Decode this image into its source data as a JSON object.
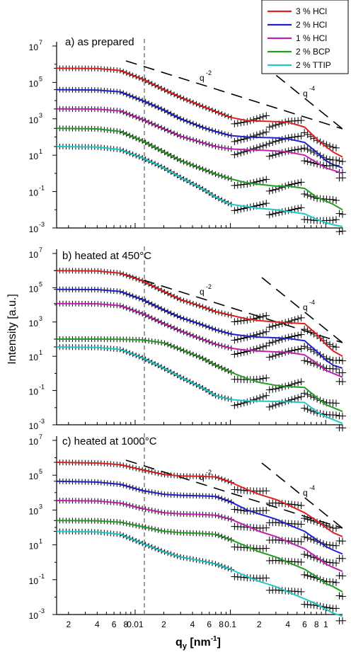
{
  "chart_data": [
    {
      "type": "line",
      "title": "a) as prepared",
      "xscale": "log",
      "yscale": "log",
      "xlim": [
        0.0015,
        1.5
      ],
      "ylim": [
        0.001,
        10000000
      ],
      "vline_x": 0.0125,
      "slope_labels": [
        "q",
        "-2",
        "q",
        "-4"
      ],
      "series": [
        {
          "name": "3 % HCl",
          "color": "#e02020",
          "x": [
            0.0015,
            0.004,
            0.007,
            0.012,
            0.02,
            0.03,
            0.05,
            0.07,
            0.1,
            0.15,
            0.2,
            0.3,
            0.4,
            0.6,
            0.8,
            1.0,
            1.2,
            1.5
          ],
          "y": [
            600000,
            580000,
            450000,
            150000,
            40000,
            15000,
            5000,
            2500,
            1200,
            800,
            750,
            700,
            650,
            350,
            80,
            30,
            15,
            8
          ]
        },
        {
          "name": "2 % HCl",
          "color": "#2020cc",
          "x": [
            0.0015,
            0.004,
            0.007,
            0.012,
            0.02,
            0.03,
            0.05,
            0.07,
            0.1,
            0.15,
            0.2,
            0.3,
            0.4,
            0.6,
            0.8,
            1.0,
            1.2,
            1.5
          ],
          "y": [
            40000,
            38000,
            30000,
            10000,
            3000,
            1000,
            350,
            200,
            120,
            100,
            95,
            90,
            80,
            50,
            15,
            5,
            3,
            2
          ]
        },
        {
          "name": "1 % HCl",
          "color": "#c020b0",
          "x": [
            0.0015,
            0.004,
            0.007,
            0.012,
            0.02,
            0.03,
            0.05,
            0.07,
            0.1,
            0.15,
            0.2,
            0.3,
            0.4,
            0.6,
            0.8,
            1.0,
            1.2,
            1.5
          ],
          "y": [
            3500,
            3400,
            2700,
            900,
            280,
            110,
            50,
            30,
            22,
            20,
            19,
            17,
            15,
            10,
            4,
            2,
            1.5,
            1
          ]
        },
        {
          "name": "2 % BCP",
          "color": "#20a020",
          "x": [
            0.0015,
            0.004,
            0.007,
            0.012,
            0.02,
            0.03,
            0.05,
            0.07,
            0.1,
            0.15,
            0.2,
            0.3,
            0.4,
            0.6,
            0.8,
            1.0,
            1.2,
            1.5
          ],
          "y": [
            300,
            280,
            200,
            60,
            15,
            5,
            1.8,
            0.9,
            0.5,
            0.3,
            0.25,
            0.2,
            0.2,
            0.15,
            0.05,
            0.03,
            0.02,
            0.01
          ]
        },
        {
          "name": "2 % TTIP",
          "color": "#20c8c8",
          "x": [
            0.0015,
            0.004,
            0.007,
            0.012,
            0.02,
            0.03,
            0.05,
            0.07,
            0.1,
            0.15,
            0.2,
            0.3,
            0.4,
            0.6,
            0.8,
            1.0,
            1.2,
            1.5
          ],
          "y": [
            30,
            28,
            20,
            7,
            2,
            0.6,
            0.15,
            0.05,
            0.02,
            0.015,
            0.012,
            0.01,
            0.008,
            0.006,
            0.003,
            0.002,
            0.0015,
            0.0012
          ]
        }
      ]
    },
    {
      "type": "line",
      "title": "b) heated at 450°C",
      "xscale": "log",
      "yscale": "log",
      "xlim": [
        0.0015,
        1.5
      ],
      "ylim": [
        0.001,
        10000000
      ],
      "vline_x": 0.0125,
      "slope_labels": [
        "q",
        "-2",
        "q",
        "-4"
      ],
      "series": [
        {
          "name": "3 % HCl",
          "color": "#e02020",
          "x": [
            0.0015,
            0.004,
            0.007,
            0.012,
            0.02,
            0.03,
            0.05,
            0.07,
            0.1,
            0.15,
            0.2,
            0.3,
            0.4,
            0.6,
            0.8,
            1.0,
            1.2,
            1.5
          ],
          "y": [
            1000000,
            950000,
            700000,
            250000,
            60000,
            20000,
            8000,
            4000,
            2500,
            1500,
            1200,
            1000,
            900,
            800,
            200,
            50,
            20,
            10
          ]
        },
        {
          "name": "2 % HCl",
          "color": "#2020cc",
          "x": [
            0.0015,
            0.004,
            0.007,
            0.012,
            0.02,
            0.03,
            0.05,
            0.07,
            0.1,
            0.15,
            0.2,
            0.3,
            0.4,
            0.6,
            0.8,
            1.0,
            1.2,
            1.5
          ],
          "y": [
            80000,
            78000,
            60000,
            20000,
            5000,
            1800,
            700,
            350,
            200,
            150,
            130,
            120,
            110,
            80,
            20,
            6,
            3,
            2
          ]
        },
        {
          "name": "1 % HCl",
          "color": "#c020b0",
          "x": [
            0.0015,
            0.004,
            0.007,
            0.012,
            0.02,
            0.03,
            0.05,
            0.07,
            0.1,
            0.15,
            0.2,
            0.3,
            0.4,
            0.6,
            0.8,
            1.0,
            1.2,
            1.5
          ],
          "y": [
            12000,
            11500,
            9000,
            3000,
            800,
            300,
            100,
            50,
            30,
            22,
            20,
            18,
            17,
            12,
            4,
            1.5,
            1,
            0.6
          ]
        },
        {
          "name": "2 % BCP",
          "color": "#20a020",
          "x": [
            0.0015,
            0.004,
            0.007,
            0.012,
            0.02,
            0.03,
            0.05,
            0.07,
            0.1,
            0.15,
            0.2,
            0.3,
            0.4,
            0.6,
            0.8,
            1.0,
            1.2,
            1.5
          ],
          "y": [
            100,
            100,
            98,
            90,
            60,
            25,
            8,
            3,
            1.2,
            0.5,
            0.3,
            0.2,
            0.17,
            0.15,
            0.04,
            0.015,
            0.01,
            0.006
          ]
        },
        {
          "name": "2 % TTIP",
          "color": "#20c8c8",
          "x": [
            0.0015,
            0.004,
            0.007,
            0.012,
            0.02,
            0.03,
            0.05,
            0.07,
            0.1,
            0.15,
            0.2,
            0.3,
            0.4,
            0.6,
            0.8,
            1.0,
            1.2,
            1.5
          ],
          "y": [
            35,
            33,
            25,
            8,
            2,
            0.6,
            0.15,
            0.05,
            0.03,
            0.025,
            0.024,
            0.023,
            0.022,
            0.02,
            0.006,
            0.003,
            0.002,
            0.0012
          ]
        }
      ]
    },
    {
      "type": "line",
      "title": "c) heated at 1000°C",
      "xscale": "log",
      "yscale": "log",
      "xlim": [
        0.0015,
        1.5
      ],
      "ylim": [
        0.001,
        10000000
      ],
      "vline_x": 0.0125,
      "slope_labels": [
        "q",
        "-2",
        "q",
        "-4"
      ],
      "series": [
        {
          "name": "3 % HCl",
          "color": "#e02020",
          "x": [
            0.0015,
            0.004,
            0.007,
            0.012,
            0.02,
            0.03,
            0.05,
            0.07,
            0.1,
            0.15,
            0.2,
            0.3,
            0.4,
            0.6,
            0.8,
            1.0,
            1.2,
            1.5
          ],
          "y": [
            550000,
            500000,
            400000,
            200000,
            110000,
            90000,
            85000,
            80000,
            40000,
            15000,
            8000,
            4000,
            2000,
            700,
            250,
            100,
            50,
            30
          ]
        },
        {
          "name": "2 % HCl",
          "color": "#2020cc",
          "x": [
            0.0015,
            0.004,
            0.007,
            0.012,
            0.02,
            0.03,
            0.05,
            0.07,
            0.1,
            0.15,
            0.2,
            0.3,
            0.4,
            0.6,
            0.8,
            1.0,
            1.2,
            1.5
          ],
          "y": [
            45000,
            40000,
            30000,
            13000,
            8000,
            7000,
            6500,
            6000,
            3000,
            1000,
            600,
            300,
            150,
            60,
            20,
            8,
            5,
            3
          ]
        },
        {
          "name": "1 % HCl",
          "color": "#c020b0",
          "x": [
            0.0015,
            0.004,
            0.007,
            0.012,
            0.02,
            0.03,
            0.05,
            0.07,
            0.1,
            0.15,
            0.2,
            0.3,
            0.4,
            0.6,
            0.8,
            1.0,
            1.2,
            1.5
          ],
          "y": [
            3500,
            3300,
            2500,
            1200,
            700,
            600,
            550,
            500,
            300,
            120,
            60,
            30,
            15,
            6,
            2,
            0.8,
            0.5,
            0.3
          ]
        },
        {
          "name": "2 % BCP",
          "color": "#20a020",
          "x": [
            0.0015,
            0.004,
            0.007,
            0.012,
            0.02,
            0.03,
            0.05,
            0.07,
            0.1,
            0.15,
            0.2,
            0.3,
            0.4,
            0.6,
            0.8,
            1.0,
            1.2,
            1.5
          ],
          "y": [
            250,
            240,
            200,
            110,
            60,
            50,
            45,
            40,
            20,
            8,
            4,
            2,
            1,
            0.4,
            0.15,
            0.06,
            0.04,
            0.02
          ]
        },
        {
          "name": "2 % TTIP",
          "color": "#20c8c8",
          "x": [
            0.0015,
            0.004,
            0.007,
            0.012,
            0.02,
            0.03,
            0.05,
            0.07,
            0.1,
            0.15,
            0.2,
            0.3,
            0.4,
            0.6,
            0.8,
            1.0,
            1.2,
            1.5
          ],
          "y": [
            60,
            55,
            40,
            12,
            4,
            2,
            1.2,
            0.8,
            0.4,
            0.15,
            0.08,
            0.04,
            0.02,
            0.008,
            0.004,
            0.002,
            0.0012,
            0.0008
          ]
        }
      ]
    }
  ],
  "ylabel": "Intensity [a.u.]",
  "xlabel": "q",
  "xlabel_sub": "y",
  "xlabel_unit_before": " [nm",
  "xlabel_unit_sup": "-1",
  "xlabel_unit_after": "]",
  "x_tick_labels": [
    "2",
    "4",
    "6",
    "8",
    "0.01",
    "2",
    "4",
    "6",
    "8",
    "0.1",
    "2",
    "4",
    "6",
    "8",
    "1"
  ],
  "y_tick_exponents": [
    "7",
    "5",
    "3",
    "1",
    "-1",
    "-3"
  ],
  "y_tick_base": "10",
  "legend": [
    {
      "label": "3 % HCl",
      "color": "#e02020"
    },
    {
      "label": "2 % HCl",
      "color": "#2020cc"
    },
    {
      "label": "1 % HCl",
      "color": "#c020b0"
    },
    {
      "label": "2 % BCP",
      "color": "#20a020"
    },
    {
      "label": "2 % TTIP",
      "color": "#20c8c8"
    }
  ]
}
